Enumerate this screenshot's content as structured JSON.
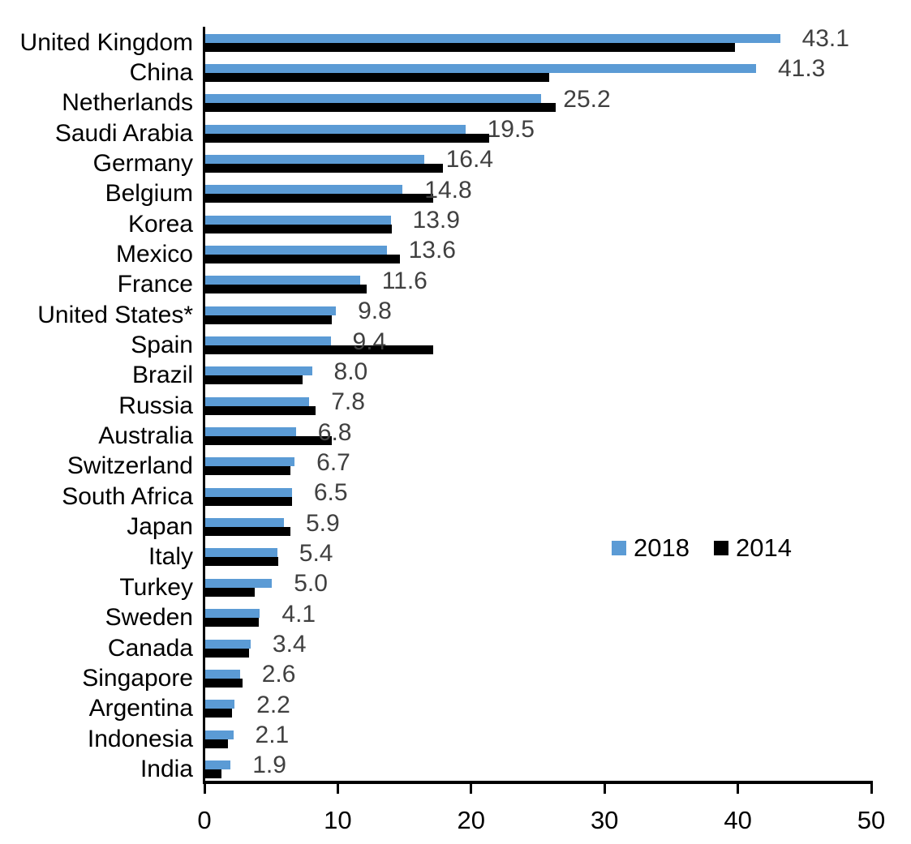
{
  "chart_data": {
    "type": "bar",
    "orientation": "horizontal",
    "categories": [
      "United Kingdom",
      "China",
      "Netherlands",
      "Saudi Arabia",
      "Germany",
      "Belgium",
      "Korea",
      "Mexico",
      "France",
      "United States*",
      "Spain",
      "Brazil",
      "Russia",
      "Australia",
      "Switzerland",
      "South Africa",
      "Japan",
      "Italy",
      "Turkey",
      "Sweden",
      "Canada",
      "Singapore",
      "Argentina",
      "Indonesia",
      "India"
    ],
    "series": [
      {
        "name": "2018",
        "color": "#5B9BD5",
        "values": [
          43.1,
          41.3,
          25.2,
          19.5,
          16.4,
          14.8,
          13.9,
          13.6,
          11.6,
          9.8,
          9.4,
          8.0,
          7.8,
          6.8,
          6.7,
          6.5,
          5.9,
          5.4,
          5.0,
          4.1,
          3.4,
          2.6,
          2.2,
          2.1,
          1.9
        ]
      },
      {
        "name": "2014",
        "color": "#000000",
        "values": [
          39.7,
          25.8,
          26.3,
          21.3,
          17.8,
          17.1,
          14.0,
          14.6,
          12.1,
          9.5,
          17.1,
          7.3,
          8.3,
          9.5,
          6.4,
          6.5,
          6.4,
          5.5,
          3.7,
          4.0,
          3.3,
          2.8,
          2.0,
          1.7,
          1.2
        ]
      }
    ],
    "value_labels": [
      "43.1",
      "41.3",
      "25.2",
      "19.5",
      "16.4",
      "14.8",
      "13.9",
      "13.6",
      "11.6",
      "9.8",
      "9.4",
      "8.0",
      "7.8",
      "6.8",
      "6.7",
      "6.5",
      "5.9",
      "5.4",
      "5.0",
      "4.1",
      "3.4",
      "2.6",
      "2.2",
      "2.1",
      "1.9"
    ],
    "value_label_series": "2018",
    "value_label_color": "#404040",
    "x_ticks": [
      "0",
      "10",
      "20",
      "30",
      "40",
      "50"
    ],
    "xlim": [
      0,
      50
    ],
    "grid": false,
    "axis_color": "#000000",
    "legend": {
      "position": "center-right",
      "entries": [
        {
          "label": "2018",
          "color": "#5B9BD5"
        },
        {
          "label": "2014",
          "color": "#000000"
        }
      ]
    }
  }
}
